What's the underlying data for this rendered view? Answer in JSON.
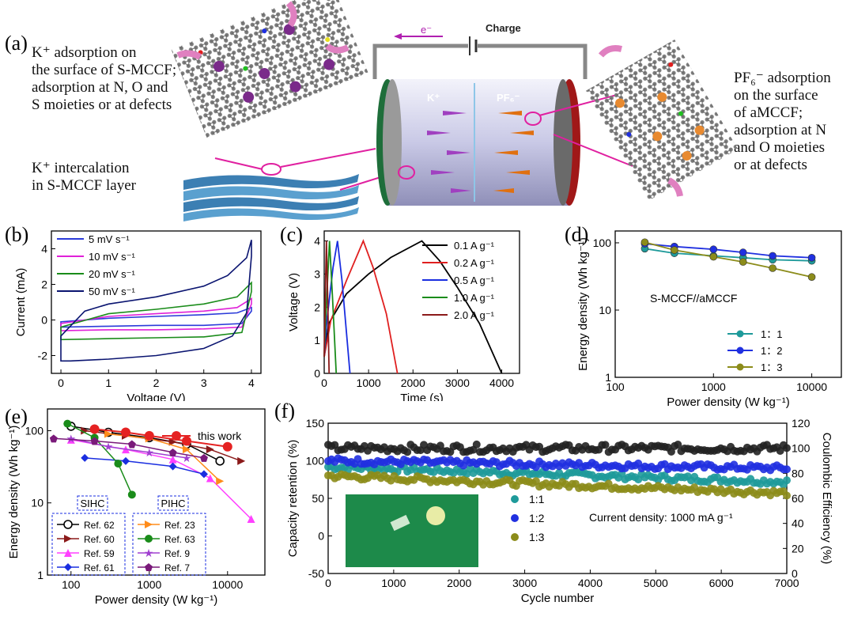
{
  "panel_a": {
    "label": "(a)",
    "text_left_top": [
      "K⁺ adsorption on",
      "the surface  of S-MCCF;",
      "adsorption at N, O and",
      "S moieties or at defects"
    ],
    "text_left_bottom": [
      "K⁺ intercalation",
      "in  S-MCCF layer"
    ],
    "text_right": [
      "PF₆⁻ adsorption",
      "on the surface",
      "of aMCCF;",
      "adsorption at N",
      "and O moieties",
      "or at defects"
    ],
    "electron_label": "e⁻",
    "charge_label": "Charge",
    "cell_k_label": "K⁺",
    "cell_pf6_label": "PF₆⁻"
  },
  "chart_data": [
    {
      "id": "b",
      "label": "(b)",
      "type": "line",
      "xlabel": "Voltage (V)",
      "ylabel": "Current (mA)",
      "xlim": [
        -0.2,
        4.2
      ],
      "ylim": [
        -3,
        5
      ],
      "xticks": [
        0,
        1,
        2,
        3,
        4
      ],
      "yticks": [
        -2,
        0,
        2,
        4
      ],
      "legend": "top-left",
      "series": [
        {
          "name": "5 mV s⁻¹",
          "color": "#2b3bd9",
          "upper": [
            [
              0,
              -0.1
            ],
            [
              1,
              0.1
            ],
            [
              2,
              0.2
            ],
            [
              3,
              0.3
            ],
            [
              3.7,
              0.4
            ],
            [
              4,
              0.7
            ]
          ],
          "lower": [
            [
              4,
              0.5
            ],
            [
              3.8,
              -0.2
            ],
            [
              3,
              -0.3
            ],
            [
              2,
              -0.3
            ],
            [
              1,
              -0.35
            ],
            [
              0,
              -0.4
            ]
          ]
        },
        {
          "name": "10 mV s⁻¹",
          "color": "#e020d8",
          "upper": [
            [
              0,
              -0.2
            ],
            [
              1,
              0.2
            ],
            [
              2,
              0.35
            ],
            [
              3,
              0.5
            ],
            [
              3.7,
              0.7
            ],
            [
              4,
              1.2
            ]
          ],
          "lower": [
            [
              4,
              0.9
            ],
            [
              3.8,
              -0.4
            ],
            [
              3,
              -0.5
            ],
            [
              2,
              -0.55
            ],
            [
              1,
              -0.55
            ],
            [
              0,
              -0.6
            ]
          ]
        },
        {
          "name": "20 mV s⁻¹",
          "color": "#1a8c1a",
          "upper": [
            [
              0,
              -0.4
            ],
            [
              1,
              0.35
            ],
            [
              2,
              0.6
            ],
            [
              3,
              0.9
            ],
            [
              3.7,
              1.3
            ],
            [
              4,
              2.1
            ]
          ],
          "lower": [
            [
              4,
              1.6
            ],
            [
              3.8,
              -0.7
            ],
            [
              3,
              -0.95
            ],
            [
              2,
              -1.0
            ],
            [
              1,
              -1.05
            ],
            [
              0,
              -1.1
            ]
          ]
        },
        {
          "name": "50 mV s⁻¹",
          "color": "#0a1470",
          "upper": [
            [
              0,
              -0.9
            ],
            [
              0.5,
              0.5
            ],
            [
              1,
              0.9
            ],
            [
              2,
              1.3
            ],
            [
              3,
              1.9
            ],
            [
              3.5,
              2.5
            ],
            [
              3.9,
              3.5
            ],
            [
              4,
              4.5
            ]
          ],
          "lower": [
            [
              4,
              3.6
            ],
            [
              3.9,
              0.4
            ],
            [
              3.6,
              -0.9
            ],
            [
              3,
              -1.6
            ],
            [
              2,
              -2.0
            ],
            [
              1,
              -2.2
            ],
            [
              0.2,
              -2.3
            ],
            [
              0,
              -2.3
            ]
          ]
        }
      ]
    },
    {
      "id": "c",
      "label": "(c)",
      "type": "line",
      "xlabel": "Time (s)",
      "ylabel": "Voltage (V)",
      "xlim": [
        0,
        4400
      ],
      "ylim": [
        0,
        4.3
      ],
      "xticks": [
        0,
        1000,
        2000,
        3000,
        4000
      ],
      "yticks": [
        0,
        1,
        2,
        3,
        4
      ],
      "legend": "top-right",
      "series": [
        {
          "name": "0.1 A g⁻¹",
          "color": "#000000",
          "points": [
            [
              0,
              0.5
            ],
            [
              100,
              1.5
            ],
            [
              500,
              2.4
            ],
            [
              1000,
              3.0
            ],
            [
              1500,
              3.5
            ],
            [
              2200,
              4.0
            ],
            [
              2600,
              3.4
            ],
            [
              3000,
              2.6
            ],
            [
              3500,
              1.5
            ],
            [
              4000,
              0
            ]
          ]
        },
        {
          "name": "0.2 A g⁻¹",
          "color": "#e02020",
          "points": [
            [
              0,
              0.5
            ],
            [
              150,
              1.6
            ],
            [
              500,
              2.8
            ],
            [
              880,
              4.0
            ],
            [
              1100,
              3.2
            ],
            [
              1400,
              1.8
            ],
            [
              1650,
              0
            ]
          ]
        },
        {
          "name": "0.5 A g⁻¹",
          "color": "#1a2ee0",
          "points": [
            [
              0,
              0.5
            ],
            [
              60,
              1.6
            ],
            [
              200,
              3.2
            ],
            [
              300,
              4.0
            ],
            [
              400,
              2.8
            ],
            [
              580,
              0
            ]
          ]
        },
        {
          "name": "1.0 A g⁻¹",
          "color": "#1a8c1a",
          "points": [
            [
              0,
              0.5
            ],
            [
              40,
              1.8
            ],
            [
              120,
              4.0
            ],
            [
              190,
              2.2
            ],
            [
              270,
              0
            ]
          ]
        },
        {
          "name": "2.0 A g⁻¹",
          "color": "#8b1a1a",
          "points": [
            [
              0,
              0.5
            ],
            [
              20,
              2.0
            ],
            [
              50,
              4.0
            ],
            [
              80,
              2.2
            ],
            [
              110,
              0
            ]
          ]
        }
      ]
    },
    {
      "id": "d",
      "label": "(d)",
      "type": "line",
      "xlabel": "Power density (W kg⁻¹)",
      "ylabel": "Energy density (Wh kg⁻¹)",
      "xscale": "log",
      "yscale": "log",
      "xlim": [
        100,
        20000
      ],
      "ylim": [
        1,
        150
      ],
      "xticks": [
        100,
        1000,
        10000
      ],
      "yticks": [
        1,
        10,
        100
      ],
      "annotation": "S-MCCF//aMCCF",
      "legend": "bottom-right",
      "series": [
        {
          "name": "1：1",
          "color": "#1e9a9a",
          "points": [
            [
              200,
              82
            ],
            [
              400,
              70
            ],
            [
              1000,
              64
            ],
            [
              2000,
              60
            ],
            [
              4000,
              56
            ],
            [
              10000,
              54
            ]
          ]
        },
        {
          "name": "1：2",
          "color": "#2030e0",
          "points": [
            [
              200,
              97
            ],
            [
              400,
              88
            ],
            [
              1000,
              80
            ],
            [
              2000,
              72
            ],
            [
              4000,
              64
            ],
            [
              10000,
              60
            ]
          ]
        },
        {
          "name": "1：3",
          "color": "#8c8c1a",
          "points": [
            [
              200,
              102
            ],
            [
              400,
              78
            ],
            [
              1000,
              62
            ],
            [
              2000,
              52
            ],
            [
              4000,
              42
            ],
            [
              10000,
              31
            ]
          ]
        }
      ]
    },
    {
      "id": "e",
      "label": "(e)",
      "type": "line",
      "xlabel": "Power density (W kg⁻¹)",
      "ylabel": "Energy density (Wh kg⁻¹)",
      "xscale": "log",
      "yscale": "log",
      "xlim": [
        50,
        30000
      ],
      "ylim": [
        1,
        200
      ],
      "xticks": [
        100,
        1000,
        10000
      ],
      "yticks": [
        1,
        10,
        100
      ],
      "legend_groups": [
        "SIHC",
        "PIHC"
      ],
      "this_work": {
        "name": "this work",
        "color": "#e52222",
        "points": [
          [
            200,
            105
          ],
          [
            500,
            95
          ],
          [
            1000,
            85
          ],
          [
            3000,
            72
          ],
          [
            10000,
            60
          ]
        ]
      },
      "series": [
        {
          "name": "Ref. 62",
          "group": "SIHC",
          "color": "#000000",
          "marker": "circle-open",
          "points": [
            [
              100,
              115
            ],
            [
              300,
              95
            ],
            [
              1000,
              80
            ],
            [
              3000,
              65
            ],
            [
              8000,
              38
            ]
          ]
        },
        {
          "name": "Ref. 60",
          "group": "SIHC",
          "color": "#8b1a1a",
          "marker": "triangle-right",
          "points": [
            [
              150,
              100
            ],
            [
              500,
              85
            ],
            [
              2000,
              70
            ],
            [
              6000,
              55
            ],
            [
              15000,
              38
            ]
          ]
        },
        {
          "name": "Ref. 59",
          "group": "SIHC",
          "color": "#ff40ff",
          "marker": "triangle-up",
          "points": [
            [
              100,
              75
            ],
            [
              500,
              55
            ],
            [
              2000,
              40
            ],
            [
              6000,
              22
            ],
            [
              20000,
              6
            ]
          ]
        },
        {
          "name": "Ref. 61",
          "group": "SIHC",
          "color": "#1a2ee0",
          "marker": "diamond",
          "points": [
            [
              150,
              42
            ],
            [
              500,
              38
            ],
            [
              2000,
              32
            ],
            [
              5000,
              25
            ]
          ]
        },
        {
          "name": "Ref. 23",
          "group": "PIHC",
          "color": "#ff8c1a",
          "marker": "triangle-right",
          "points": [
            [
              300,
              90
            ],
            [
              1000,
              78
            ],
            [
              3000,
              55
            ],
            [
              8000,
              20
            ]
          ]
        },
        {
          "name": "Ref. 63",
          "group": "PIHC",
          "color": "#1a8c1a",
          "marker": "circle",
          "points": [
            [
              90,
              125
            ],
            [
              200,
              80
            ],
            [
              400,
              35
            ],
            [
              600,
              13
            ]
          ]
        },
        {
          "name": "Ref. 9",
          "group": "PIHC",
          "color": "#a040d0",
          "marker": "star",
          "points": [
            [
              100,
              78
            ],
            [
              300,
              60
            ],
            [
              1000,
              50
            ],
            [
              3000,
              42
            ]
          ]
        },
        {
          "name": "Ref. 7",
          "group": "PIHC",
          "color": "#7a1a7a",
          "marker": "pentagon",
          "points": [
            [
              60,
              78
            ],
            [
              200,
              72
            ],
            [
              600,
              65
            ],
            [
              2000,
              50
            ],
            [
              5000,
              42
            ]
          ]
        }
      ]
    },
    {
      "id": "f",
      "label": "(f)",
      "type": "scatter",
      "xlabel": "Cycle number",
      "ylabel": "Capacity retention (%)",
      "y2label": "Coulombic Efficiency (%)",
      "xlim": [
        0,
        7000
      ],
      "ylim": [
        -50,
        150
      ],
      "y2lim": [
        0,
        120
      ],
      "xticks": [
        0,
        1000,
        2000,
        3000,
        4000,
        5000,
        6000,
        7000
      ],
      "yticks": [
        -50,
        0,
        50,
        100,
        150
      ],
      "y2ticks": [
        0,
        20,
        40,
        60,
        80,
        100,
        120
      ],
      "annotation": "Current density: 1000 mA g⁻¹",
      "legend": "bottom-center",
      "series": [
        {
          "name": "1:1",
          "color": "#1e9a9a",
          "mean_start": 92,
          "mean_end": 72
        },
        {
          "name": "1:2",
          "color": "#2030e0",
          "mean_start": 100,
          "mean_end": 90
        },
        {
          "name": "1:3",
          "color": "#8c8c1a",
          "mean_start": 80,
          "mean_end": 57
        }
      ],
      "coulombic_efficiency": {
        "color": "#000000",
        "mean": 100
      }
    }
  ]
}
